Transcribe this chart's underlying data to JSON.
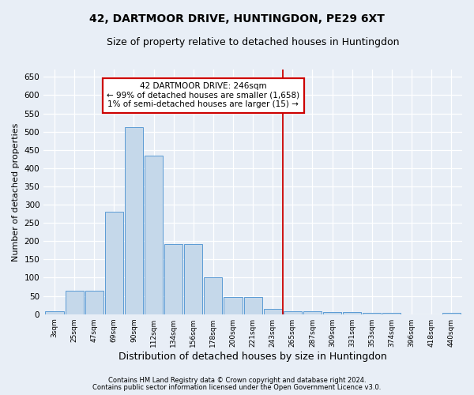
{
  "title": "42, DARTMOOR DRIVE, HUNTINGDON, PE29 6XT",
  "subtitle": "Size of property relative to detached houses in Huntingdon",
  "xlabel": "Distribution of detached houses by size in Huntingdon",
  "ylabel": "Number of detached properties",
  "footnote1": "Contains HM Land Registry data © Crown copyright and database right 2024.",
  "footnote2": "Contains public sector information licensed under the Open Government Licence v3.0.",
  "bar_labels": [
    "3sqm",
    "25sqm",
    "47sqm",
    "69sqm",
    "90sqm",
    "112sqm",
    "134sqm",
    "156sqm",
    "178sqm",
    "200sqm",
    "221sqm",
    "243sqm",
    "265sqm",
    "287sqm",
    "309sqm",
    "331sqm",
    "353sqm",
    "374sqm",
    "396sqm",
    "418sqm",
    "440sqm"
  ],
  "bar_values": [
    8,
    65,
    65,
    280,
    512,
    435,
    192,
    192,
    102,
    47,
    47,
    14,
    8,
    8,
    5,
    5,
    4,
    3,
    0,
    0,
    4
  ],
  "bar_color": "#c5d8ea",
  "bar_edge_color": "#5b9bd5",
  "vline_color": "#cc0000",
  "vline_x": 11.5,
  "annotation_title": "42 DARTMOOR DRIVE: 246sqm",
  "annotation_line1": "← 99% of detached houses are smaller (1,658)",
  "annotation_line2": "1% of semi-detached houses are larger (15) →",
  "annotation_box_facecolor": "white",
  "annotation_box_edgecolor": "#cc0000",
  "ylim": [
    0,
    670
  ],
  "yticks": [
    0,
    50,
    100,
    150,
    200,
    250,
    300,
    350,
    400,
    450,
    500,
    550,
    600,
    650
  ],
  "bg_color": "#e8eef6",
  "title_fontsize": 10,
  "subtitle_fontsize": 9,
  "xlabel_fontsize": 9,
  "ylabel_fontsize": 8
}
